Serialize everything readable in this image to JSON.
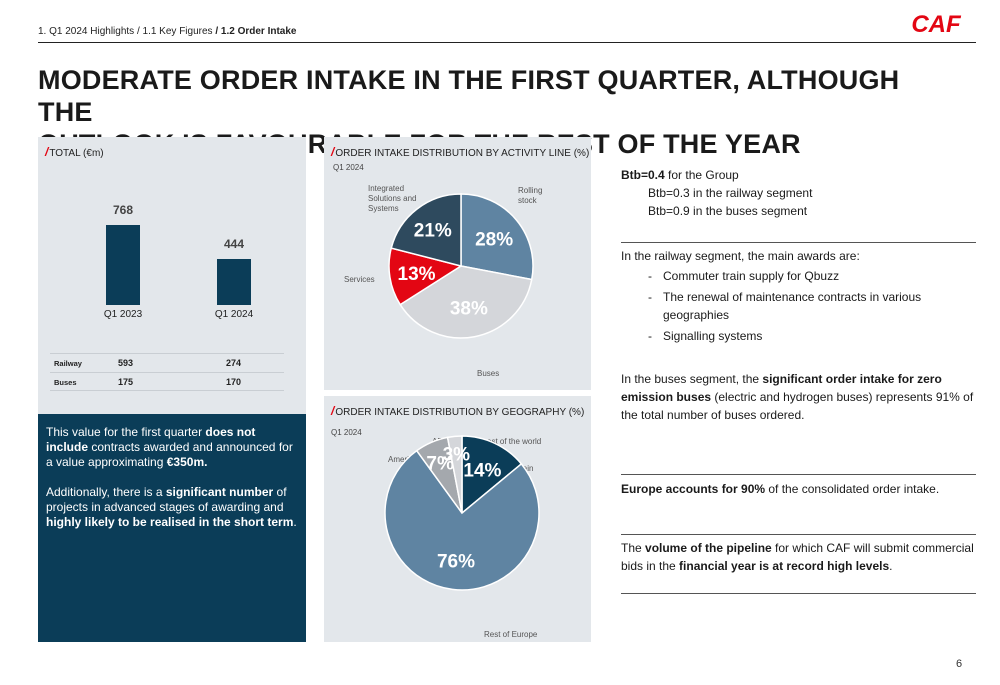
{
  "breadcrumb": {
    "prefix": "1. Q1 2024 Highlights / 1.1 Key Figures ",
    "current": "/ 1.2 Order Intake"
  },
  "logo": {
    "text": "CAF",
    "color": "#e30613"
  },
  "title": {
    "line1": "MODERATE ORDER INTAKE IN THE FIRST QUARTER, ALTHOUGH THE",
    "line2": "OUTLOOK IS FAVOURABLE FOR THE REST OF THE YEAR"
  },
  "colors": {
    "accent": "#e30613",
    "navy": "#0b3d58",
    "panel": "#e3e7eb"
  },
  "total_panel": {
    "heading": "TOTAL (€m)",
    "table": {
      "rows": [
        {
          "label": "Railway",
          "q1_2023": "593",
          "q1_2024": "274"
        },
        {
          "label": "Buses",
          "q1_2023": "175",
          "q1_2024": "170"
        }
      ]
    }
  },
  "chart_data": [
    {
      "type": "bar",
      "title": "TOTAL (€m)",
      "categories": [
        "Q1 2023",
        "Q1 2024"
      ],
      "values": [
        768,
        444
      ],
      "value_labels": [
        "768",
        "444"
      ],
      "color": "#0b3d58",
      "ylim": [
        0,
        768
      ]
    },
    {
      "type": "pie",
      "title": "ORDER INTAKE DISTRIBUTION BY ACTIVITY LINE (%)",
      "subtitle": "Q1 2024",
      "slices": [
        {
          "label": "Rolling stock",
          "value": 28,
          "display": "28%",
          "color": "#5f84a2"
        },
        {
          "label": "Buses",
          "value": 38,
          "display": "38%",
          "color": "#d4d6da"
        },
        {
          "label": "Services",
          "value": 13,
          "display": "13%",
          "color": "#e30613"
        },
        {
          "label": "Integrated Solutions and Systems",
          "value": 21,
          "display": "21%",
          "color": "#2e4a5e"
        }
      ]
    },
    {
      "type": "pie",
      "title": "ORDER INTAKE DISTRIBUTION BY GEOGRAPHY (%)",
      "subtitle": "Q1 2024",
      "slices": [
        {
          "label": "Spain",
          "value": 14,
          "display": "14%",
          "color": "#0b3d58"
        },
        {
          "label": "Rest of Europe",
          "value": 76,
          "display": "76%",
          "color": "#5f84a2"
        },
        {
          "label": "America",
          "value": 7,
          "display": "7%",
          "color": "#a4a8ad"
        },
        {
          "label": "APAC and the rest of the world",
          "value": 3,
          "display": "3%",
          "color": "#d4d6da"
        }
      ]
    }
  ],
  "note_box": {
    "p1": [
      "This value for the first quarter ",
      "does not include",
      " contracts awarded and announced for a value approximating ",
      "€350m."
    ],
    "p2": [
      "Additionally, there is a ",
      "significant number",
      " of projects in advanced stages of awarding and ",
      "highly likely to be realised in the short term",
      "."
    ]
  },
  "right": {
    "btb": {
      "bold": "Btb=0.4",
      "text": " for the Group",
      "rail": "Btb=0.3 in the railway segment",
      "buses": "Btb=0.9 in the buses segment"
    },
    "railway": {
      "intro": "In the railway segment, the main awards are:",
      "items": [
        "Commuter train supply for Qbuzz",
        "The renewal of maintenance contracts in various geographies",
        "Signalling systems"
      ]
    },
    "buses": [
      "In the buses segment, the ",
      "significant order intake for zero emission buses",
      " (electric and hydrogen buses) represents 91% of the total number of buses ordered."
    ],
    "europe": [
      "Europe accounts for 90%",
      " of the consolidated order intake."
    ],
    "pipeline": [
      "The ",
      "volume of the pipeline",
      " for which CAF will submit commercial bids in the ",
      "financial year is at record high levels",
      "."
    ]
  },
  "page_number": "6"
}
